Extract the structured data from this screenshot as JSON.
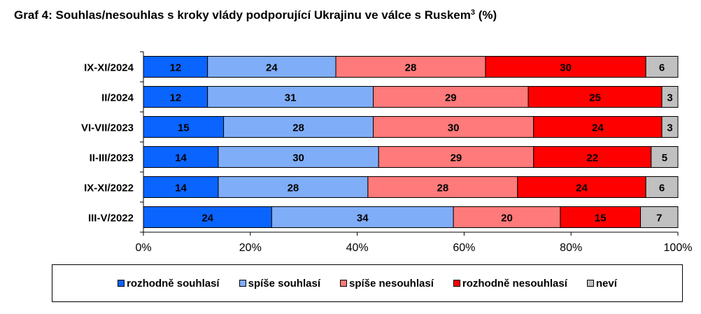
{
  "title": {
    "text": "Graf 4: Souhlas/nesouhlas s kroky vlády podporující Ukrajinu ve válce s Ruskem",
    "superscript": "3",
    "suffix": " (%)"
  },
  "colors": {
    "rozhodne_souhlasi": "#0a64ff",
    "spise_souhlasi": "#80adf7",
    "spise_nesouhlasi": "#ff7a7a",
    "rozhodne_nesouhlasi": "#ff0000",
    "nevi": "#c0c0c0"
  },
  "chart_data": {
    "type": "bar",
    "orientation": "horizontal",
    "stacked": "percent",
    "categories": [
      "IX-XI/2024",
      "II/2024",
      "VI-VII/2023",
      "II-III/2023",
      "IX-XI/2022",
      "III-V/2022"
    ],
    "series": [
      {
        "name": "rozhodně souhlasí",
        "color": "#0a64ff",
        "values": [
          12,
          12,
          15,
          14,
          14,
          24
        ]
      },
      {
        "name": "spíše souhlasí",
        "color": "#80adf7",
        "values": [
          24,
          31,
          28,
          30,
          28,
          34
        ]
      },
      {
        "name": "spíše nesouhlasí",
        "color": "#ff7a7a",
        "values": [
          28,
          29,
          30,
          29,
          28,
          20
        ]
      },
      {
        "name": "rozhodně nesouhlasí",
        "color": "#ff0000",
        "values": [
          30,
          25,
          24,
          22,
          24,
          15
        ]
      },
      {
        "name": "neví",
        "color": "#c0c0c0",
        "values": [
          6,
          3,
          3,
          5,
          6,
          7
        ]
      }
    ],
    "xlim": [
      0,
      100
    ],
    "xticks": [
      "0%",
      "20%",
      "40%",
      "60%",
      "80%",
      "100%"
    ],
    "data_labels": true,
    "grid": false,
    "legend_position": "bottom"
  }
}
